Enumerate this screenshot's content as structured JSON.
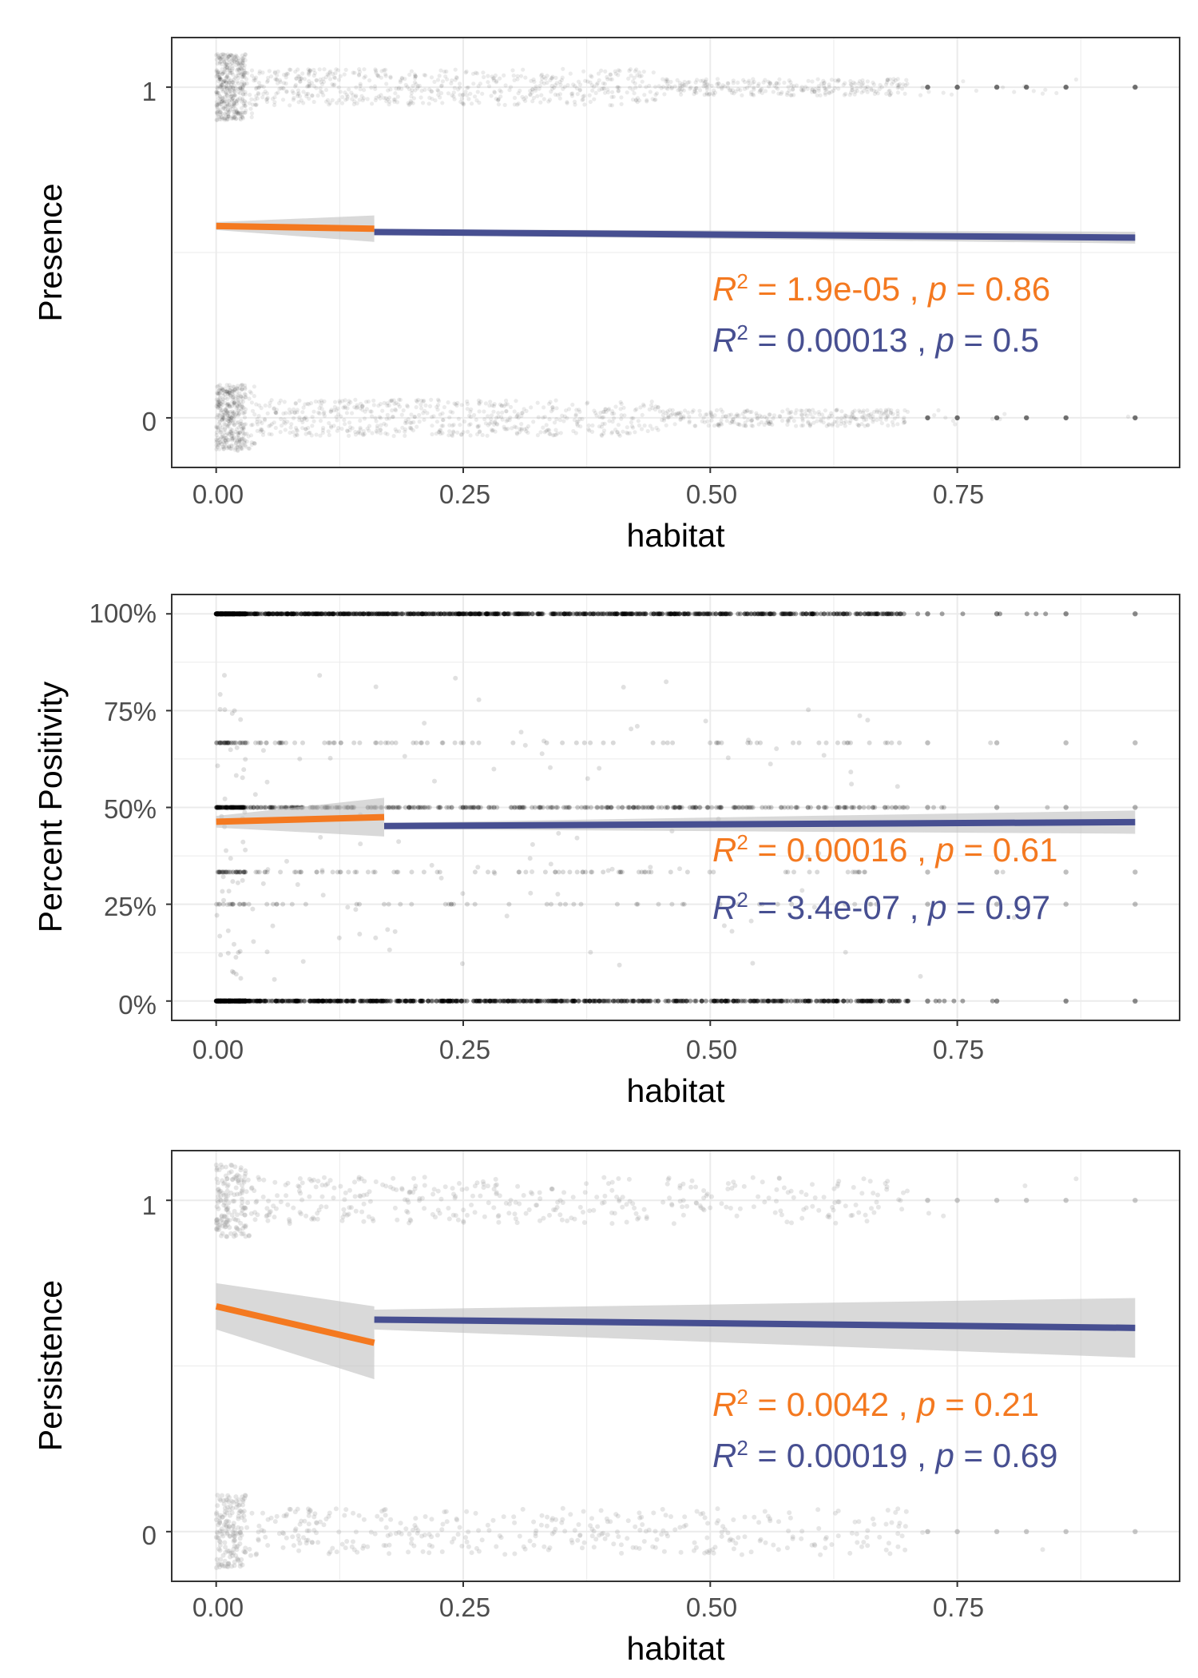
{
  "figure": {
    "x_axis_label": "habitat",
    "x_ticks": [
      "0.00",
      "0.25",
      "0.50",
      "0.75"
    ]
  },
  "colors": {
    "orange": "#f47920",
    "blue": "#474f91",
    "ribbon": "#bfbfbf",
    "points": "#000000",
    "grid": "#ebebeb",
    "panel_border": "#333333"
  },
  "chart_data": [
    {
      "type": "scatter",
      "title": "",
      "xlabel": "habitat",
      "ylabel": "Presence",
      "xlim": [
        -0.045,
        0.975
      ],
      "ylim": [
        -0.15,
        1.15
      ],
      "x_ticks": [
        0,
        0.25,
        0.5,
        0.75
      ],
      "y_ticks": [
        0,
        1
      ],
      "y_tick_labels": [
        "0",
        "1"
      ],
      "grid": true,
      "points": {
        "style": "binary-jitter",
        "levels": [
          0,
          1
        ],
        "x_range": [
          0,
          0.93
        ],
        "opacity": 0.08
      },
      "series": [
        {
          "color": "orange",
          "x": [
            0,
            0.16
          ],
          "y": [
            0.58,
            0.572
          ],
          "ci_halfwidth": [
            0.012,
            0.04
          ]
        },
        {
          "color": "blue",
          "x": [
            0.16,
            0.93
          ],
          "y": [
            0.562,
            0.545
          ],
          "ci_halfwidth": [
            0.008,
            0.018
          ]
        }
      ],
      "annotations": [
        {
          "color": "orange",
          "r2": "1.9e-05",
          "p": "0.86"
        },
        {
          "color": "blue",
          "r2": "0.00013",
          "p": "0.5"
        }
      ]
    },
    {
      "type": "scatter",
      "title": "",
      "xlabel": "habitat",
      "ylabel": "Percent Positivity",
      "xlim": [
        -0.045,
        0.975
      ],
      "ylim": [
        -0.05,
        1.05
      ],
      "x_ticks": [
        0,
        0.25,
        0.5,
        0.75
      ],
      "y_ticks": [
        0,
        0.25,
        0.5,
        0.75,
        1
      ],
      "y_tick_labels": [
        "0%",
        "25%",
        "50%",
        "75%",
        "100%"
      ],
      "grid": true,
      "points": {
        "style": "fraction-levels",
        "levels": [
          0,
          0.25,
          0.333,
          0.5,
          0.667,
          1
        ],
        "x_range": [
          0,
          0.93
        ],
        "opacity": 0.15
      },
      "series": [
        {
          "color": "orange",
          "x": [
            0,
            0.17
          ],
          "y": [
            0.463,
            0.475
          ],
          "ci_halfwidth": [
            0.015,
            0.05
          ]
        },
        {
          "color": "blue",
          "x": [
            0.17,
            0.93
          ],
          "y": [
            0.452,
            0.462
          ],
          "ci_halfwidth": [
            0.008,
            0.03
          ]
        }
      ],
      "annotations": [
        {
          "color": "orange",
          "r2": "0.00016",
          "p": "0.61"
        },
        {
          "color": "blue",
          "r2": "3.4e-07",
          "p": "0.97"
        }
      ]
    },
    {
      "type": "scatter",
      "title": "",
      "xlabel": "habitat",
      "ylabel": "Persistence",
      "xlim": [
        -0.045,
        0.975
      ],
      "ylim": [
        -0.15,
        1.15
      ],
      "x_ticks": [
        0,
        0.25,
        0.5,
        0.75
      ],
      "y_ticks": [
        0,
        1
      ],
      "y_tick_labels": [
        "0",
        "1"
      ],
      "grid": true,
      "points": {
        "style": "binary-jitter-wide",
        "levels": [
          0,
          1
        ],
        "x_range": [
          0,
          0.93
        ],
        "opacity": 0.15
      },
      "series": [
        {
          "color": "orange",
          "x": [
            0,
            0.16
          ],
          "y": [
            0.68,
            0.57
          ],
          "ci_halfwidth": [
            0.07,
            0.11
          ]
        },
        {
          "color": "blue",
          "x": [
            0.16,
            0.93
          ],
          "y": [
            0.64,
            0.615
          ],
          "ci_halfwidth": [
            0.03,
            0.09
          ]
        }
      ],
      "annotations": [
        {
          "color": "orange",
          "r2": "0.0042",
          "p": "0.21"
        },
        {
          "color": "blue",
          "r2": "0.00019",
          "p": "0.69"
        }
      ]
    }
  ]
}
